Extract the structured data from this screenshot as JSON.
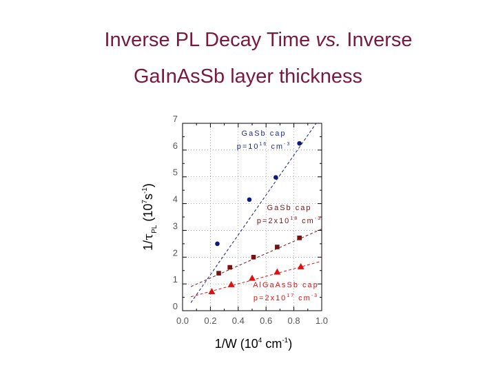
{
  "title": {
    "line1_a": "Inverse PL Decay Time ",
    "line1_b": "vs.",
    "line1_c": " Inverse",
    "line2": "GaInAsSb layer thickness"
  },
  "colors": {
    "title": "#7a1840",
    "blue": "#0a1a80",
    "dark_red": "#7a1010",
    "red": "#e01010",
    "annotation_blue": "#1a2a90",
    "annotation_dark_red": "#7a1010",
    "annotation_red": "#e01010"
  },
  "axes": {
    "x_title": "1/W (10",
    "x_title_sup": "4",
    "x_title_mid": " cm",
    "x_title_sup2": "-1",
    "x_title_end": ")",
    "y_title_a": "1/",
    "y_title_tau": "τ",
    "y_title_sub": "PL",
    "y_title_b": " (10",
    "y_title_sup": "7",
    "y_title_c": "s",
    "y_title_sup2": "-1",
    "y_title_d": ")"
  },
  "chart_data": {
    "type": "scatter",
    "title": "Inverse PL Decay Time vs. Inverse GaInAsSb layer thickness",
    "xlabel": "1/W (10^4 cm^-1)",
    "ylabel": "1/τPL (10^7 s^-1)",
    "xlim": [
      0.0,
      1.0
    ],
    "ylim": [
      0,
      7
    ],
    "x_ticks": [
      "0.0",
      "0.2",
      "0.4",
      "0.6",
      "0.8",
      "1.0"
    ],
    "y_ticks": [
      "0",
      "1",
      "2",
      "3",
      "4",
      "5",
      "6",
      "7"
    ],
    "series": [
      {
        "name": "GaSb cap p=10^16 cm^-3",
        "label_line1": "GaSb cap",
        "label_line2_a": "p=10",
        "label_line2_sup": "16",
        "label_line2_b": " cm",
        "label_line2_sup2": "-3",
        "marker": "circle",
        "color": "#0a1a80",
        "x": [
          0.25,
          0.48,
          0.67,
          0.84
        ],
        "y": [
          2.5,
          4.15,
          4.98,
          6.25
        ],
        "fit": {
          "x0": 0.06,
          "y0": 0.3,
          "x1": 0.96,
          "y1": 7.0
        }
      },
      {
        "name": "GaSb cap p=2x10^18 cm^-3",
        "label_line1": "GaSb cap",
        "label_line2_a": "p=2x10",
        "label_line2_sup": "18",
        "label_line2_b": " cm",
        "label_line2_sup2": "-3",
        "marker": "square",
        "color": "#7a1010",
        "x": [
          0.26,
          0.34,
          0.51,
          0.68,
          0.84
        ],
        "y": [
          1.4,
          1.62,
          2.0,
          2.38,
          2.72
        ],
        "fit": {
          "x0": 0.06,
          "y0": 0.9,
          "x1": 1.0,
          "y1": 3.05
        }
      },
      {
        "name": "AlGaAsSb cap p=2x10^17 cm^-3",
        "label_line1": "AlGaAsSb cap",
        "label_line2_a": "p=2x10",
        "label_line2_sup": "17",
        "label_line2_b": " cm",
        "label_line2_sup2": "-3",
        "marker": "triangle",
        "color": "#e01010",
        "x": [
          0.21,
          0.35,
          0.5,
          0.68,
          0.85
        ],
        "y": [
          0.72,
          0.98,
          1.22,
          1.45,
          1.65
        ],
        "fit": {
          "x0": 0.06,
          "y0": 0.52,
          "x1": 1.0,
          "y1": 1.85
        }
      }
    ]
  }
}
